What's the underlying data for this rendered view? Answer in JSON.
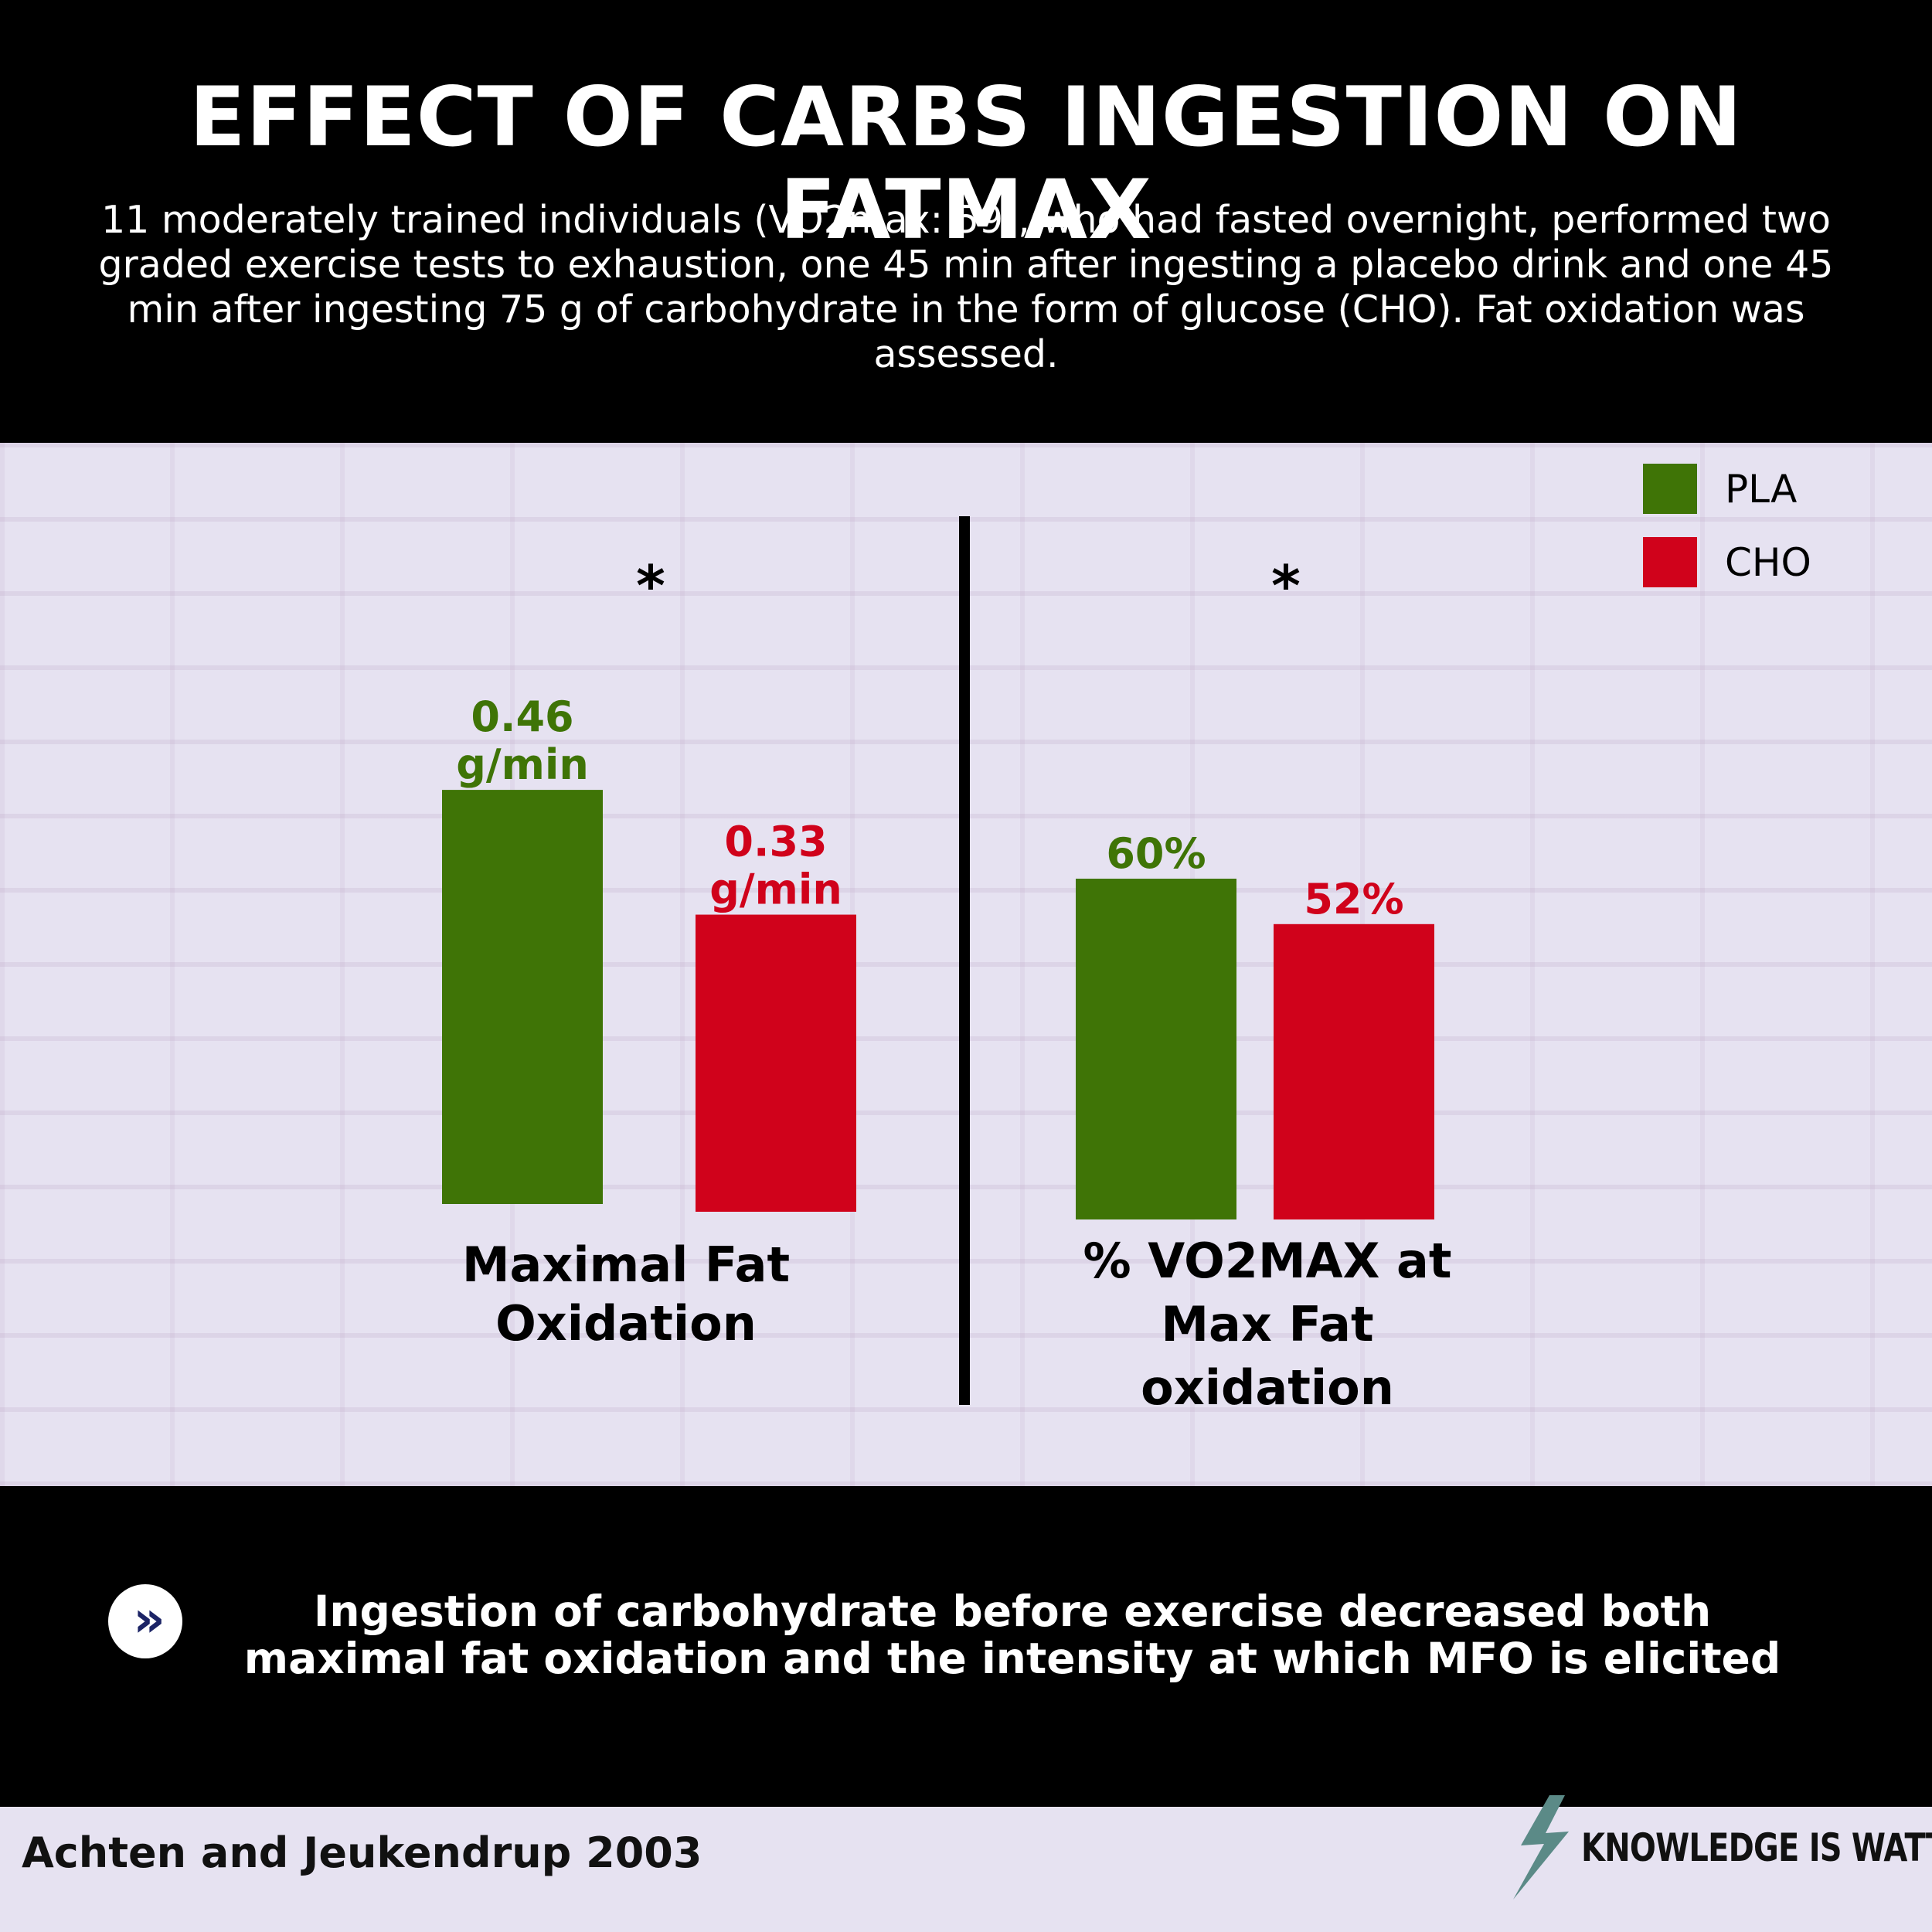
{
  "header": {
    "title": "EFFECT OF CARBS INGESTION ON FATMAX",
    "subtitle": "11 moderately trained individuals (VO2max: 59), who had fasted overnight, performed two graded exercise tests to exhaustion, one 45 min after ingesting a placebo drink and one 45 min after ingesting 75 g of carbohydrate in the form of glucose (CHO). Fat oxidation was assessed."
  },
  "chart_data": [
    {
      "type": "bar",
      "categories": [
        "PLA",
        "CHO"
      ],
      "series": [
        {
          "values": [
            0.46,
            0.33
          ]
        }
      ],
      "value_labels": [
        [
          "0.46",
          "g/min"
        ],
        [
          "0.33",
          "g/min"
        ]
      ],
      "xlabel": [
        "Maximal Fat",
        "Oxidation"
      ],
      "significance": "*",
      "colors": [
        "#3f7406",
        "#d0021b"
      ]
    },
    {
      "type": "bar",
      "categories": [
        "PLA",
        "CHO"
      ],
      "series": [
        {
          "values": [
            60,
            52
          ]
        }
      ],
      "value_labels": [
        [
          "60%"
        ],
        [
          "52%"
        ]
      ],
      "xlabel": [
        "% VO2MAX at",
        "Max Fat",
        "oxidation"
      ],
      "significance": "*",
      "colors": [
        "#3f7406",
        "#d0021b"
      ]
    }
  ],
  "legend": {
    "items": [
      {
        "label": "PLA",
        "color": "#3f7406"
      },
      {
        "label": "CHO",
        "color": "#d0021b"
      }
    ],
    "placement": "top-right"
  },
  "conclusion": {
    "icon": "double-chevron-right-icon",
    "text": "Ingestion of carbohydrate before exercise decreased both maximal fat oxidation and the intensity at which MFO is elicited"
  },
  "footer": {
    "citation": "Achten and Jeukendrup 2003",
    "brand": "KNOWLEDGE IS WATT",
    "brand_icon": "lightning-bolt-icon",
    "brand_color": "#5b8a87"
  }
}
